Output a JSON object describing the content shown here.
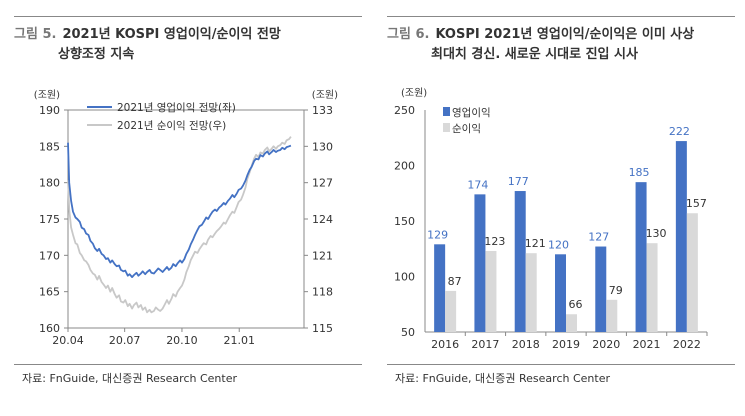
{
  "left": {
    "fig_no": "그림 5.",
    "title_l1": "2021년 KOSPI 영업이익/순이익 전망",
    "title_l2": "상향조정 지속",
    "source": "자료: FnGuide, 대신증권 Research Center"
  },
  "right": {
    "fig_no": "그림 6.",
    "title_l1": "KOSPI 2021년 영업이익/순이익은 이미 사상",
    "title_l2": "최대치 경신. 새로운 시대로 진입 시사",
    "source": "자료: FnGuide, 대신증권 Research Center"
  },
  "colors": {
    "op": "#4472c4",
    "net": "#c8c8c8",
    "netbar": "#d9d9d9",
    "axis": "#888888",
    "label_op": "#4472c4",
    "label_net": "#333333"
  },
  "chart_data": [
    {
      "type": "line",
      "title": "",
      "ylabel_left": "(조원)",
      "ylabel_right": "(조원)",
      "ylim_left": [
        160,
        190
      ],
      "ylim_right": [
        115,
        133
      ],
      "yticks_left": [
        "160",
        "165",
        "170",
        "175",
        "180",
        "185",
        "190"
      ],
      "yticks_right": [
        "115",
        "118",
        "121",
        "124",
        "127",
        "130",
        "133"
      ],
      "x_range": [
        "2020-04-01",
        "2021-04-15"
      ],
      "xticks": [
        {
          "date": "2020-04-01",
          "label": "20.04"
        },
        {
          "date": "2020-07-01",
          "label": "20.07"
        },
        {
          "date": "2020-10-01",
          "label": "20.10"
        },
        {
          "date": "2021-01-01",
          "label": "21.01"
        }
      ],
      "legend_position": "top-left",
      "series": [
        {
          "name": "2021년 영업이익 전망(좌)",
          "axis": "left",
          "points": [
            [
              "2020-04-01",
              185.5
            ],
            [
              "2020-04-03",
              180.0
            ],
            [
              "2020-04-06",
              177.5
            ],
            [
              "2020-04-09",
              176.0
            ],
            [
              "2020-04-13",
              175.2
            ],
            [
              "2020-04-16",
              175.0
            ],
            [
              "2020-04-20",
              174.6
            ],
            [
              "2020-04-23",
              173.8
            ],
            [
              "2020-04-27",
              173.6
            ],
            [
              "2020-04-30",
              173.0
            ],
            [
              "2020-05-04",
              172.8
            ],
            [
              "2020-05-07",
              172.0
            ],
            [
              "2020-05-11",
              171.6
            ],
            [
              "2020-05-14",
              171.0
            ],
            [
              "2020-05-18",
              170.6
            ],
            [
              "2020-05-21",
              170.9
            ],
            [
              "2020-05-25",
              170.2
            ],
            [
              "2020-05-28",
              170.0
            ],
            [
              "2020-06-01",
              169.5
            ],
            [
              "2020-06-04",
              169.6
            ],
            [
              "2020-06-08",
              169.0
            ],
            [
              "2020-06-11",
              169.3
            ],
            [
              "2020-06-15",
              168.8
            ],
            [
              "2020-06-18",
              168.5
            ],
            [
              "2020-06-22",
              168.6
            ],
            [
              "2020-06-25",
              168.0
            ],
            [
              "2020-06-29",
              167.8
            ],
            [
              "2020-07-02",
              167.9
            ],
            [
              "2020-07-06",
              167.2
            ],
            [
              "2020-07-09",
              167.4
            ],
            [
              "2020-07-13",
              167.0
            ],
            [
              "2020-07-16",
              167.3
            ],
            [
              "2020-07-20",
              167.6
            ],
            [
              "2020-07-23",
              167.2
            ],
            [
              "2020-07-27",
              167.5
            ],
            [
              "2020-07-30",
              167.8
            ],
            [
              "2020-08-03",
              167.4
            ],
            [
              "2020-08-06",
              167.7
            ],
            [
              "2020-08-10",
              168.0
            ],
            [
              "2020-08-13",
              167.6
            ],
            [
              "2020-08-17",
              167.5
            ],
            [
              "2020-08-20",
              167.8
            ],
            [
              "2020-08-24",
              168.2
            ],
            [
              "2020-08-27",
              168.0
            ],
            [
              "2020-08-31",
              167.7
            ],
            [
              "2020-09-03",
              168.0
            ],
            [
              "2020-09-07",
              168.4
            ],
            [
              "2020-09-10",
              168.0
            ],
            [
              "2020-09-14",
              168.3
            ],
            [
              "2020-09-17",
              168.8
            ],
            [
              "2020-09-21",
              168.5
            ],
            [
              "2020-09-24",
              168.9
            ],
            [
              "2020-09-28",
              169.3
            ],
            [
              "2020-10-01",
              169.0
            ],
            [
              "2020-10-05",
              169.5
            ],
            [
              "2020-10-08",
              170.2
            ],
            [
              "2020-10-12",
              170.8
            ],
            [
              "2020-10-15",
              171.5
            ],
            [
              "2020-10-19",
              172.2
            ],
            [
              "2020-10-22",
              172.8
            ],
            [
              "2020-10-26",
              173.5
            ],
            [
              "2020-10-29",
              174.0
            ],
            [
              "2020-11-02",
              174.2
            ],
            [
              "2020-11-05",
              174.6
            ],
            [
              "2020-11-09",
              175.2
            ],
            [
              "2020-11-12",
              175.0
            ],
            [
              "2020-11-16",
              175.6
            ],
            [
              "2020-11-19",
              176.0
            ],
            [
              "2020-11-23",
              176.3
            ],
            [
              "2020-11-26",
              176.1
            ],
            [
              "2020-11-30",
              176.6
            ],
            [
              "2020-12-03",
              176.8
            ],
            [
              "2020-12-07",
              177.2
            ],
            [
              "2020-12-10",
              177.0
            ],
            [
              "2020-12-14",
              177.5
            ],
            [
              "2020-12-17",
              177.8
            ],
            [
              "2020-12-21",
              178.3
            ],
            [
              "2020-12-24",
              178.0
            ],
            [
              "2020-12-28",
              178.5
            ],
            [
              "2020-12-31",
              179.0
            ],
            [
              "2021-01-04",
              179.2
            ],
            [
              "2021-01-07",
              179.6
            ],
            [
              "2021-01-11",
              180.3
            ],
            [
              "2021-01-14",
              181.0
            ],
            [
              "2021-01-18",
              181.8
            ],
            [
              "2021-01-21",
              182.2
            ],
            [
              "2021-01-25",
              183.0
            ],
            [
              "2021-01-28",
              183.3
            ],
            [
              "2021-02-01",
              183.2
            ],
            [
              "2021-02-04",
              183.8
            ],
            [
              "2021-02-08",
              183.6
            ],
            [
              "2021-02-11",
              184.0
            ],
            [
              "2021-02-15",
              184.3
            ],
            [
              "2021-02-18",
              183.9
            ],
            [
              "2021-02-22",
              184.2
            ],
            [
              "2021-02-25",
              184.5
            ],
            [
              "2021-03-01",
              184.2
            ],
            [
              "2021-03-04",
              184.4
            ],
            [
              "2021-03-08",
              184.5
            ],
            [
              "2021-03-11",
              184.8
            ],
            [
              "2021-03-15",
              184.6
            ],
            [
              "2021-03-18",
              184.9
            ],
            [
              "2021-03-22",
              185.0
            ],
            [
              "2021-03-25",
              185.1
            ]
          ]
        },
        {
          "name": "2021년 순이익 전망(우)",
          "axis": "right",
          "points": [
            [
              "2020-04-01",
              127.2
            ],
            [
              "2020-04-03",
              124.8
            ],
            [
              "2020-04-06",
              123.3
            ],
            [
              "2020-04-09",
              122.7
            ],
            [
              "2020-04-13",
              122.0
            ],
            [
              "2020-04-16",
              121.9
            ],
            [
              "2020-04-20",
              121.2
            ],
            [
              "2020-04-23",
              121.0
            ],
            [
              "2020-04-27",
              120.6
            ],
            [
              "2020-04-30",
              120.5
            ],
            [
              "2020-05-04",
              120.2
            ],
            [
              "2020-05-07",
              119.8
            ],
            [
              "2020-05-11",
              119.5
            ],
            [
              "2020-05-14",
              119.4
            ],
            [
              "2020-05-18",
              119.0
            ],
            [
              "2020-05-21",
              119.3
            ],
            [
              "2020-05-25",
              118.8
            ],
            [
              "2020-05-28",
              118.6
            ],
            [
              "2020-06-01",
              118.3
            ],
            [
              "2020-06-04",
              118.5
            ],
            [
              "2020-06-08",
              118.0
            ],
            [
              "2020-06-11",
              118.3
            ],
            [
              "2020-06-15",
              117.8
            ],
            [
              "2020-06-18",
              117.5
            ],
            [
              "2020-06-22",
              117.7
            ],
            [
              "2020-06-25",
              117.2
            ],
            [
              "2020-06-29",
              117.1
            ],
            [
              "2020-07-02",
              117.3
            ],
            [
              "2020-07-06",
              116.8
            ],
            [
              "2020-07-09",
              117.0
            ],
            [
              "2020-07-13",
              116.6
            ],
            [
              "2020-07-16",
              116.9
            ],
            [
              "2020-07-20",
              117.1
            ],
            [
              "2020-07-23",
              116.7
            ],
            [
              "2020-07-27",
              116.9
            ],
            [
              "2020-07-30",
              116.5
            ],
            [
              "2020-08-03",
              116.7
            ],
            [
              "2020-08-06",
              116.3
            ],
            [
              "2020-08-10",
              116.5
            ],
            [
              "2020-08-13",
              116.3
            ],
            [
              "2020-08-17",
              116.4
            ],
            [
              "2020-08-20",
              116.7
            ],
            [
              "2020-08-24",
              116.5
            ],
            [
              "2020-08-27",
              116.4
            ],
            [
              "2020-08-31",
              116.6
            ],
            [
              "2020-09-03",
              116.9
            ],
            [
              "2020-09-07",
              117.3
            ],
            [
              "2020-09-10",
              117.0
            ],
            [
              "2020-09-14",
              117.4
            ],
            [
              "2020-09-17",
              117.8
            ],
            [
              "2020-09-21",
              117.6
            ],
            [
              "2020-09-24",
              118.0
            ],
            [
              "2020-09-28",
              118.3
            ],
            [
              "2020-10-01",
              118.5
            ],
            [
              "2020-10-05",
              119.0
            ],
            [
              "2020-10-08",
              119.6
            ],
            [
              "2020-10-12",
              120.1
            ],
            [
              "2020-10-15",
              120.6
            ],
            [
              "2020-10-19",
              121.0
            ],
            [
              "2020-10-22",
              121.3
            ],
            [
              "2020-10-26",
              121.2
            ],
            [
              "2020-10-29",
              121.5
            ],
            [
              "2020-11-02",
              121.8
            ],
            [
              "2020-11-05",
              122.0
            ],
            [
              "2020-11-09",
              121.9
            ],
            [
              "2020-11-12",
              122.3
            ],
            [
              "2020-11-16",
              122.6
            ],
            [
              "2020-11-19",
              122.5
            ],
            [
              "2020-11-23",
              122.8
            ],
            [
              "2020-11-26",
              123.0
            ],
            [
              "2020-11-30",
              123.2
            ],
            [
              "2020-12-03",
              123.4
            ],
            [
              "2020-12-07",
              123.7
            ],
            [
              "2020-12-10",
              123.6
            ],
            [
              "2020-12-14",
              124.0
            ],
            [
              "2020-12-17",
              124.3
            ],
            [
              "2020-12-21",
              124.6
            ],
            [
              "2020-12-24",
              124.5
            ],
            [
              "2020-12-28",
              125.0
            ],
            [
              "2020-12-31",
              125.4
            ],
            [
              "2021-01-04",
              125.6
            ],
            [
              "2021-01-07",
              126.0
            ],
            [
              "2021-01-11",
              126.6
            ],
            [
              "2021-01-14",
              127.3
            ],
            [
              "2021-01-18",
              127.9
            ],
            [
              "2021-01-21",
              128.4
            ],
            [
              "2021-01-25",
              129.0
            ],
            [
              "2021-01-28",
              129.3
            ],
            [
              "2021-02-01",
              129.1
            ],
            [
              "2021-02-04",
              129.5
            ],
            [
              "2021-02-08",
              129.4
            ],
            [
              "2021-02-11",
              129.7
            ],
            [
              "2021-02-15",
              129.9
            ],
            [
              "2021-02-18",
              129.6
            ],
            [
              "2021-02-22",
              129.8
            ],
            [
              "2021-02-25",
              130.0
            ],
            [
              "2021-03-01",
              129.8
            ],
            [
              "2021-03-04",
              130.0
            ],
            [
              "2021-03-08",
              130.1
            ],
            [
              "2021-03-11",
              130.3
            ],
            [
              "2021-03-15",
              130.2
            ],
            [
              "2021-03-18",
              130.5
            ],
            [
              "2021-03-22",
              130.6
            ],
            [
              "2021-03-25",
              130.8
            ]
          ]
        }
      ]
    },
    {
      "type": "bar",
      "title": "",
      "ylabel": "(조원)",
      "ylim": [
        50,
        250
      ],
      "yticks": [
        "50",
        "100",
        "150",
        "200",
        "250"
      ],
      "categories": [
        "2016",
        "2017",
        "2018",
        "2019",
        "2020",
        "2021",
        "2022"
      ],
      "legend_position": "top-left",
      "series": [
        {
          "name": "영업이익",
          "values": [
            129,
            174,
            177,
            120,
            127,
            185,
            222
          ]
        },
        {
          "name": "순이익",
          "values": [
            87,
            123,
            121,
            66,
            79,
            130,
            157
          ]
        }
      ]
    }
  ]
}
